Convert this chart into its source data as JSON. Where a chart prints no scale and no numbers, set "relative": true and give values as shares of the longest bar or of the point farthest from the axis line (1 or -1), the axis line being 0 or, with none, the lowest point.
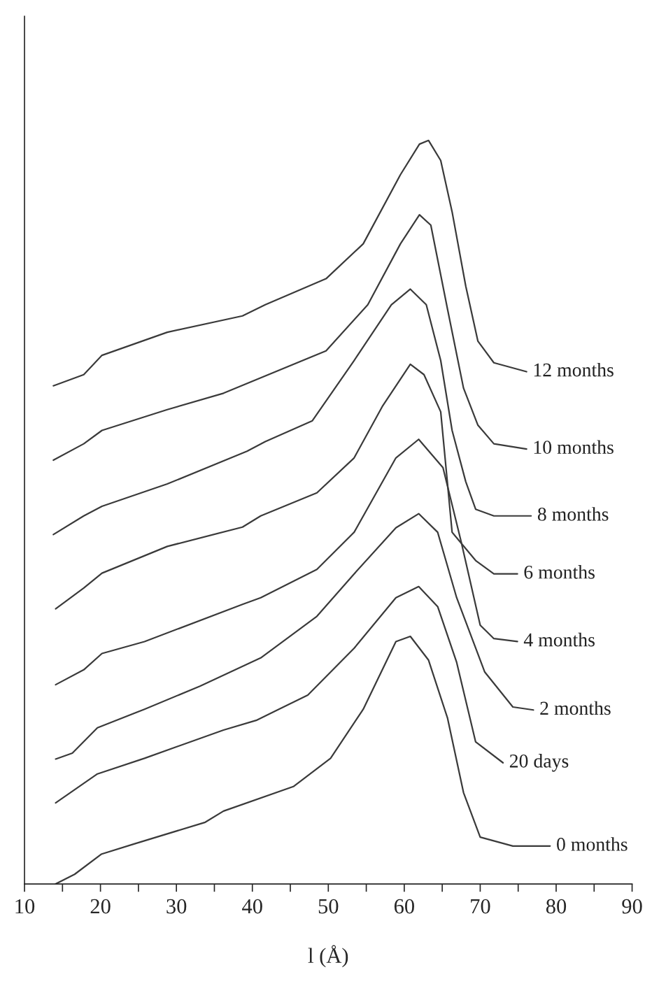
{
  "chart_data": {
    "type": "line",
    "relative": true,
    "xlabel": "l (Å)",
    "xlim": [
      10,
      90
    ],
    "xticks": [
      10,
      {
        "value": 15,
        "label": null
      },
      20,
      {
        "value": 25,
        "label": null
      },
      30,
      {
        "value": 35,
        "label": null
      },
      40,
      {
        "value": 45,
        "label": null
      },
      50,
      {
        "value": 55,
        "label": null
      },
      60,
      {
        "value": 65,
        "label": null
      },
      70,
      {
        "value": 75,
        "label": null
      },
      80,
      {
        "value": 85,
        "label": null
      },
      90
    ],
    "grid": false,
    "legend": false,
    "marker": "none",
    "line_style": "solid",
    "series": [
      {
        "name": "0 months",
        "color": "#3a3a3a",
        "x": [
          14.1,
          16.6,
          20.1,
          24.5,
          33.8,
          36.2,
          45.4,
          50.3,
          54.6,
          58.9,
          60.8,
          63.2,
          65.7,
          67.8,
          70.0,
          74.3,
          79.2
        ],
        "values": [
          0,
          0.013,
          0.04,
          0.054,
          0.083,
          0.098,
          0.131,
          0.169,
          0.235,
          0.326,
          0.333,
          0.301,
          0.223,
          0.123,
          0.063,
          0.051,
          0.051
        ]
      },
      {
        "name": "20 days",
        "color": "#3a3a3a",
        "x": [
          14.1,
          19.6,
          25.8,
          36.2,
          40.5,
          47.3,
          53.4,
          58.9,
          61.9,
          64.4,
          66.9,
          69.4,
          73.0
        ],
        "values": [
          0.109,
          0.148,
          0.169,
          0.207,
          0.22,
          0.254,
          0.317,
          0.385,
          0.4,
          0.373,
          0.298,
          0.191,
          0.163
        ]
      },
      {
        "name": "2 months",
        "color": "#3a3a3a",
        "x": [
          14.1,
          16.3,
          19.6,
          25.8,
          33.1,
          41.1,
          48.5,
          53.4,
          58.9,
          61.9,
          64.4,
          66.9,
          70.6,
          74.3,
          77.0
        ],
        "values": [
          0.168,
          0.176,
          0.21,
          0.235,
          0.266,
          0.304,
          0.36,
          0.417,
          0.479,
          0.498,
          0.473,
          0.385,
          0.285,
          0.238,
          0.234
        ]
      },
      {
        "name": "4 months",
        "color": "#3a3a3a",
        "x": [
          14.1,
          17.8,
          20.2,
          25.8,
          38.7,
          41.1,
          48.5,
          53.4,
          58.9,
          61.9,
          65.1,
          67.5,
          70.0,
          71.8,
          74.9
        ],
        "values": [
          0.268,
          0.288,
          0.31,
          0.326,
          0.376,
          0.385,
          0.423,
          0.473,
          0.573,
          0.598,
          0.56,
          0.46,
          0.348,
          0.33,
          0.326
        ]
      },
      {
        "name": "6 months",
        "color": "#3a3a3a",
        "x": [
          14.1,
          17.8,
          20.2,
          28.8,
          38.7,
          41.1,
          48.5,
          53.4,
          57.1,
          60.8,
          62.6,
          64.8,
          66.3,
          69.4,
          71.8,
          74.9
        ],
        "values": [
          0.37,
          0.398,
          0.418,
          0.454,
          0.48,
          0.495,
          0.526,
          0.573,
          0.642,
          0.699,
          0.685,
          0.635,
          0.473,
          0.435,
          0.417,
          0.417
        ]
      },
      {
        "name": "8 months",
        "color": "#3a3a3a",
        "x": [
          13.8,
          17.8,
          20.2,
          28.8,
          39.3,
          41.7,
          47.9,
          53.4,
          58.3,
          60.8,
          62.9,
          64.8,
          66.3,
          68.1,
          69.4,
          71.8,
          76.7
        ],
        "values": [
          0.47,
          0.495,
          0.508,
          0.538,
          0.582,
          0.595,
          0.623,
          0.704,
          0.779,
          0.8,
          0.779,
          0.704,
          0.61,
          0.541,
          0.504,
          0.495,
          0.495
        ]
      },
      {
        "name": "10 months",
        "color": "#3a3a3a",
        "x": [
          13.8,
          17.8,
          20.2,
          28.8,
          36.2,
          49.7,
          55.2,
          59.5,
          62.0,
          63.5,
          65.7,
          67.8,
          69.7,
          71.8,
          76.1
        ],
        "values": [
          0.57,
          0.592,
          0.61,
          0.638,
          0.66,
          0.717,
          0.779,
          0.861,
          0.9,
          0.886,
          0.773,
          0.667,
          0.617,
          0.592,
          0.585
        ]
      },
      {
        "name": "12 months",
        "color": "#3a3a3a",
        "x": [
          13.8,
          17.8,
          20.2,
          28.8,
          38.7,
          41.7,
          49.7,
          54.6,
          59.5,
          62.0,
          63.2,
          64.8,
          66.3,
          68.1,
          69.7,
          71.8,
          76.1
        ],
        "values": [
          0.67,
          0.685,
          0.711,
          0.742,
          0.764,
          0.779,
          0.814,
          0.861,
          0.954,
          0.995,
          1.0,
          0.973,
          0.904,
          0.804,
          0.73,
          0.701,
          0.689
        ]
      }
    ]
  }
}
